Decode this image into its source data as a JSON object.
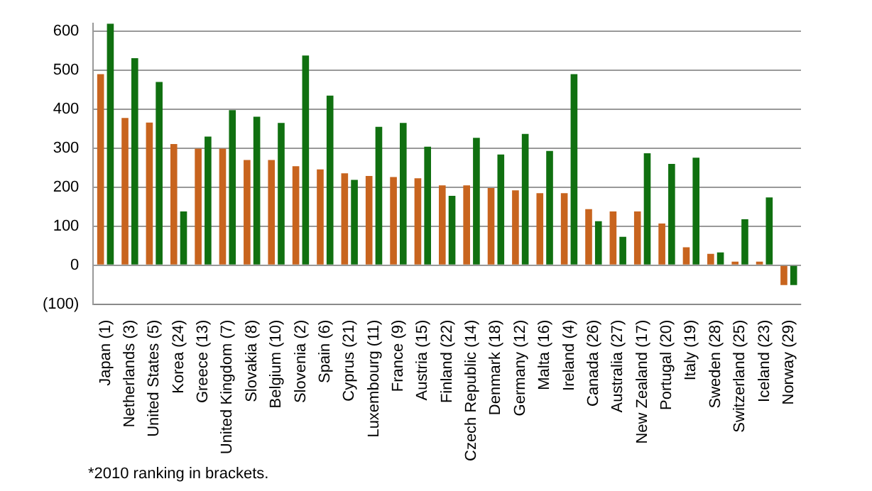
{
  "chart_data": {
    "type": "bar",
    "categories": [
      "Japan (1)",
      "Netherlands (3)",
      "United States (5)",
      "Korea (24)",
      "Greece (13)",
      "United Kingdom (7)",
      "Slovakia (8)",
      "Belgium (10)",
      "Slovenia (2)",
      "Spain (6)",
      "Cyprus (21)",
      "Luxembourg (11)",
      "France (9)",
      "Austria (15)",
      "Finland (22)",
      "Czech Republic (14)",
      "Denmark (18)",
      "Germany (12)",
      "Malta (16)",
      "Ireland (4)",
      "Canada (26)",
      "Australia (27)",
      "New Zealand (17)",
      "Portugal (20)",
      "Italy (19)",
      "Sweden (28)",
      "Switzerland (25)",
      "Iceland (23)",
      "Norway (29)"
    ],
    "series": [
      {
        "color": "#c8641e",
        "values": [
          490,
          378,
          366,
          311,
          299,
          299,
          270,
          270,
          254,
          246,
          236,
          229,
          226,
          223,
          205,
          205,
          198,
          192,
          185,
          185,
          144,
          138,
          138,
          107,
          46,
          29,
          9,
          9,
          -51
        ]
      },
      {
        "color": "#107010",
        "values": [
          620,
          531,
          470,
          138,
          330,
          398,
          381,
          365,
          538,
          435,
          219,
          355,
          365,
          304,
          178,
          327,
          284,
          337,
          293,
          490,
          113,
          73,
          287,
          260,
          276,
          33,
          118,
          174,
          -51
        ]
      }
    ],
    "ylim": [
      -100,
      620
    ],
    "yticks": [
      {
        "value": -100,
        "label": "(100)"
      },
      0,
      100,
      200,
      300,
      400,
      500,
      600
    ],
    "grid": "y",
    "legend": false,
    "annotations": [
      "*2010 ranking in brackets."
    ]
  }
}
